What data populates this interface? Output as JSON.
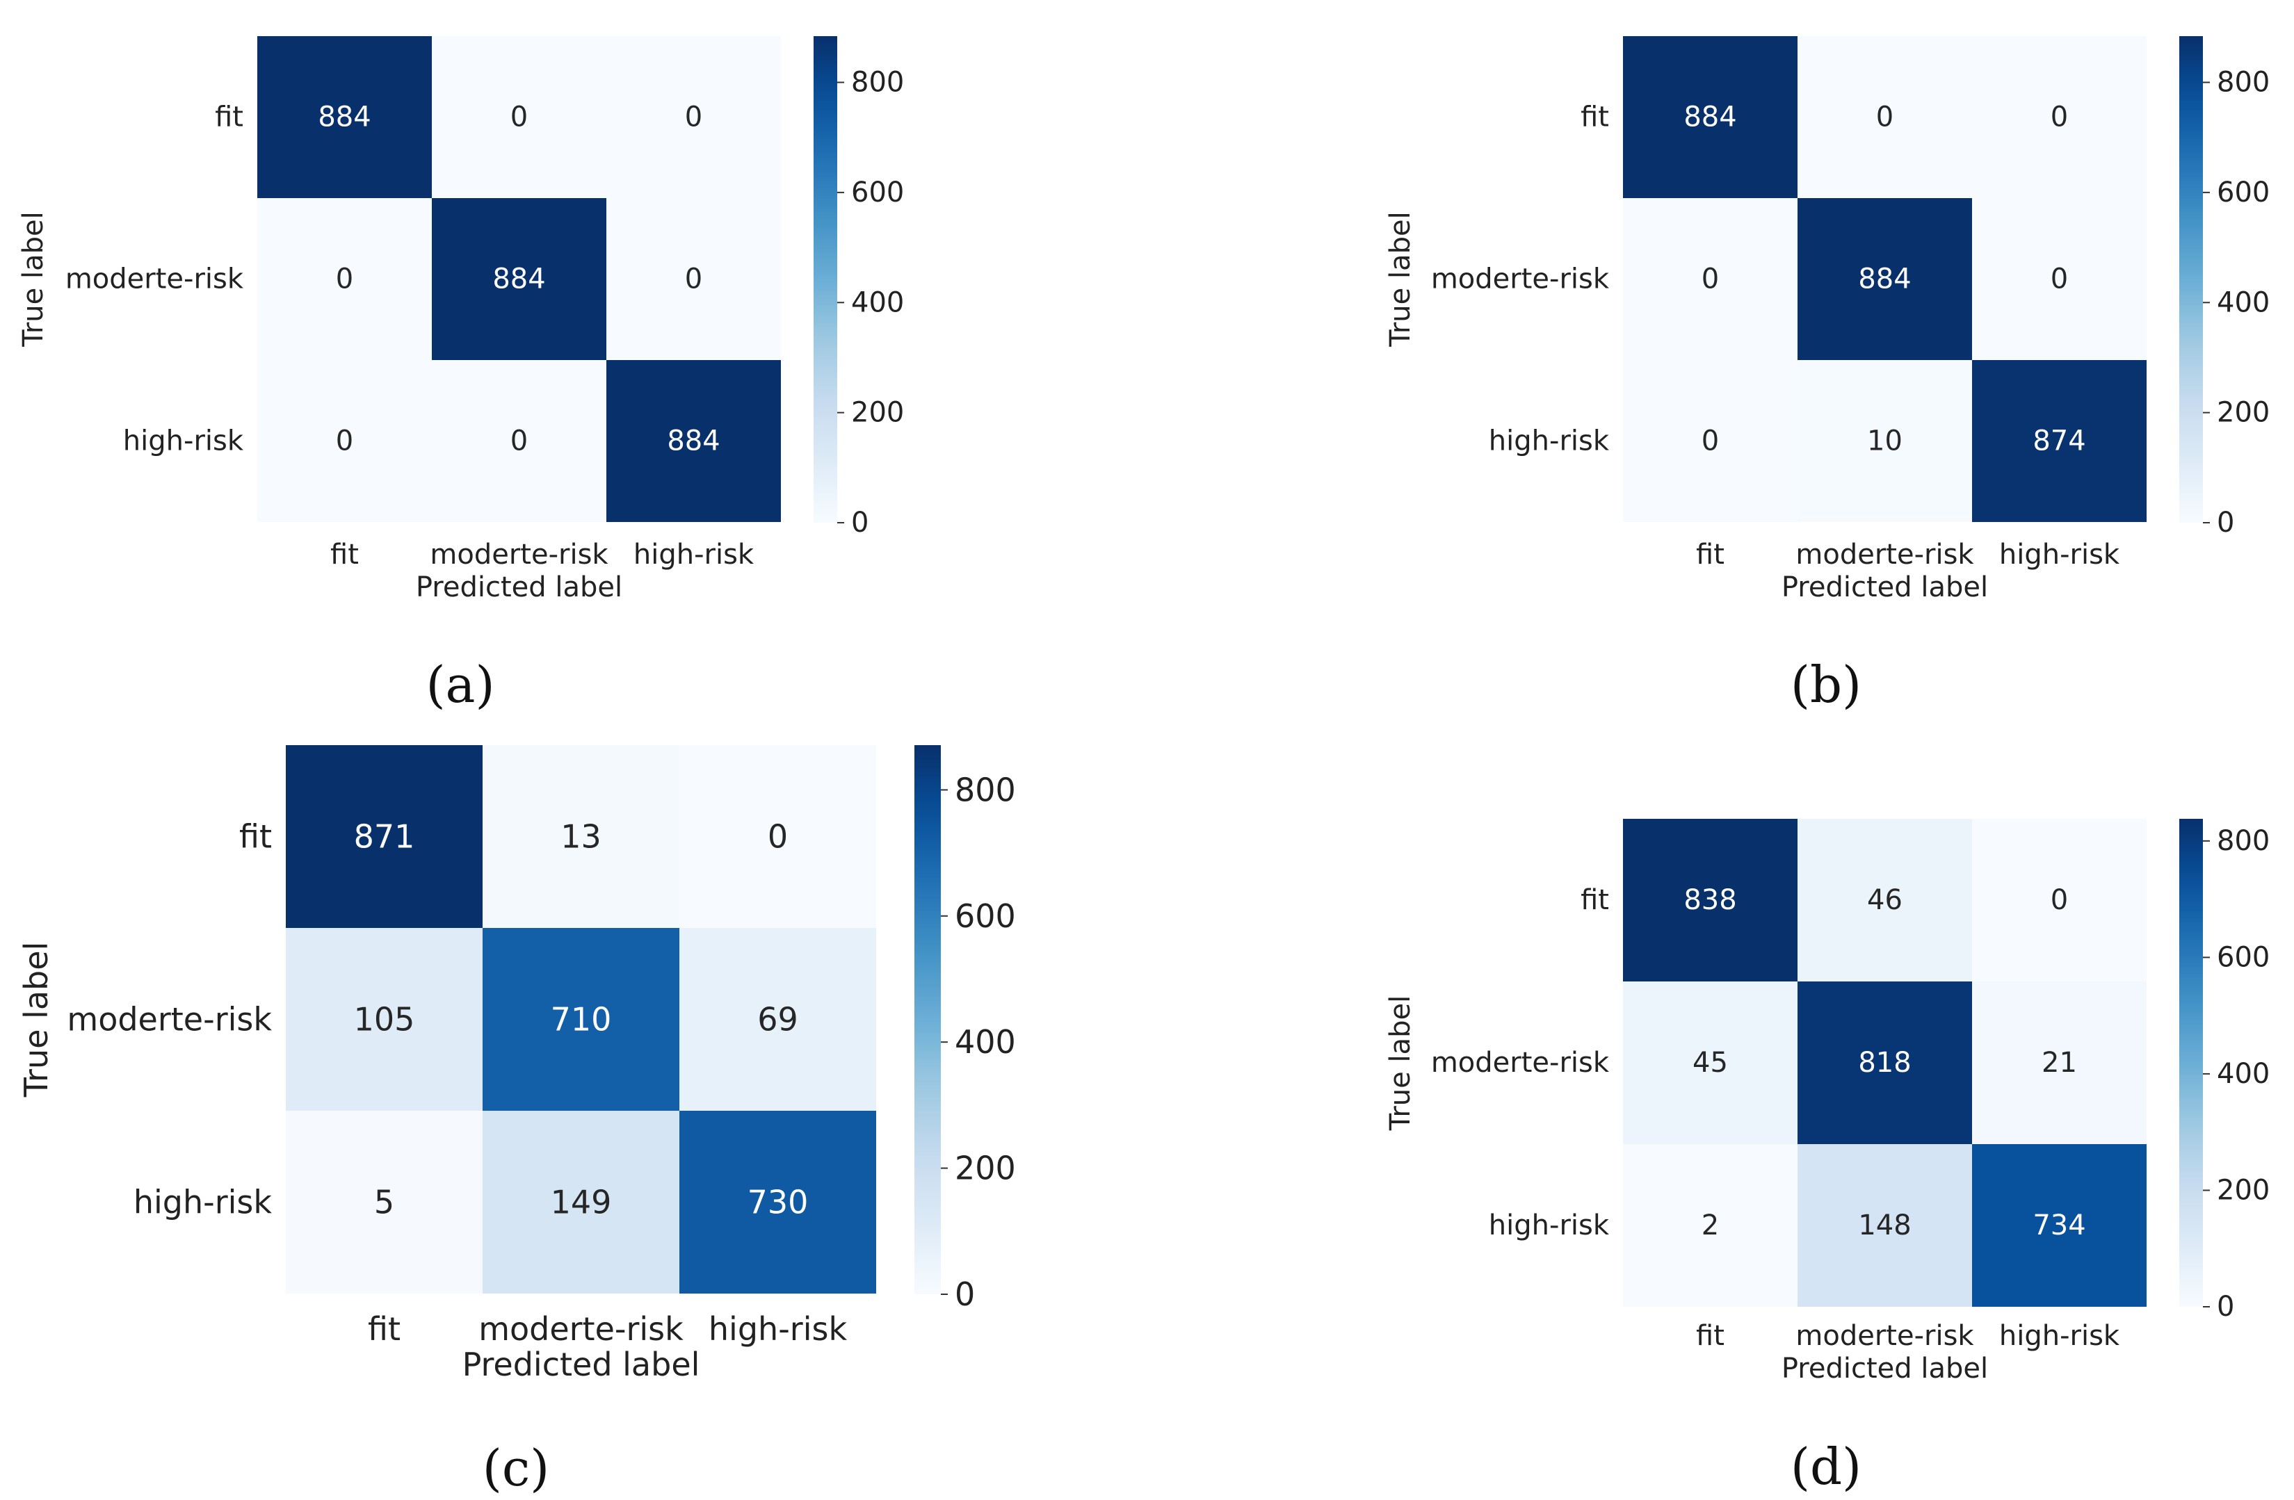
{
  "chart_data": [
    {
      "type": "heatmap",
      "panel": "(a)",
      "rows": [
        "fit",
        "moderte-risk",
        "high-risk"
      ],
      "cols": [
        "fit",
        "moderte-risk",
        "high-risk"
      ],
      "values": [
        [
          884,
          0,
          0
        ],
        [
          0,
          884,
          0
        ],
        [
          0,
          0,
          884
        ]
      ],
      "xlabel": "Predicted label",
      "ylabel": "True label",
      "colorbar_ticks": [
        "0",
        "200",
        "400",
        "600",
        "800"
      ],
      "colorbar_range": [
        0,
        884
      ],
      "colormap": "Blues"
    },
    {
      "type": "heatmap",
      "panel": "(b)",
      "rows": [
        "fit",
        "moderte-risk",
        "high-risk"
      ],
      "cols": [
        "fit",
        "moderte-risk",
        "high-risk"
      ],
      "values": [
        [
          884,
          0,
          0
        ],
        [
          0,
          884,
          0
        ],
        [
          0,
          10,
          874
        ]
      ],
      "xlabel": "Predicted label",
      "ylabel": "True label",
      "colorbar_ticks": [
        "0",
        "200",
        "400",
        "600",
        "800"
      ],
      "colorbar_range": [
        0,
        884
      ],
      "colormap": "Blues"
    },
    {
      "type": "heatmap",
      "panel": "(c)",
      "rows": [
        "fit",
        "moderte-risk",
        "high-risk"
      ],
      "cols": [
        "fit",
        "moderte-risk",
        "high-risk"
      ],
      "values": [
        [
          871,
          13,
          0
        ],
        [
          105,
          710,
          69
        ],
        [
          5,
          149,
          730
        ]
      ],
      "xlabel": "Predicted label",
      "ylabel": "True label",
      "colorbar_ticks": [
        "0",
        "200",
        "400",
        "600",
        "800"
      ],
      "colorbar_range": [
        0,
        871
      ],
      "colormap": "Blues"
    },
    {
      "type": "heatmap",
      "panel": "(d)",
      "rows": [
        "fit",
        "moderte-risk",
        "high-risk"
      ],
      "cols": [
        "fit",
        "moderte-risk",
        "high-risk"
      ],
      "values": [
        [
          838,
          46,
          0
        ],
        [
          45,
          818,
          21
        ],
        [
          2,
          148,
          734
        ]
      ],
      "xlabel": "Predicted label",
      "ylabel": "True label",
      "colorbar_ticks": [
        "0",
        "200",
        "400",
        "600",
        "800"
      ],
      "colorbar_range": [
        0,
        838
      ],
      "colormap": "Blues"
    }
  ]
}
